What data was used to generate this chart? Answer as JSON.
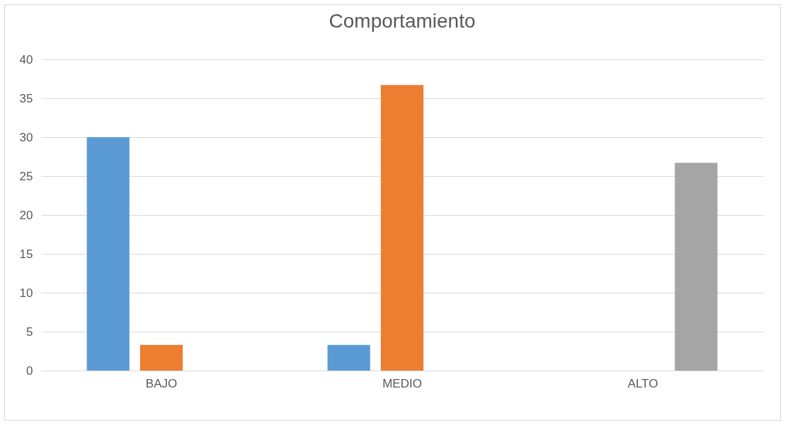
{
  "chart_data": {
    "type": "bar",
    "title": "Comportamiento",
    "categories": [
      "BAJO",
      "MEDIO",
      "ALTO"
    ],
    "series": [
      {
        "color": "#5b9bd5",
        "values": [
          30,
          3.3,
          0
        ]
      },
      {
        "color": "#ed7d31",
        "values": [
          3.3,
          36.7,
          0
        ]
      },
      {
        "color": "#a5a5a5",
        "values": [
          0,
          0,
          26.7
        ]
      }
    ],
    "ylim": [
      0,
      40
    ],
    "yticks": [
      0,
      5,
      10,
      15,
      20,
      25,
      30,
      35,
      40
    ],
    "grid": "y",
    "legend": false
  }
}
